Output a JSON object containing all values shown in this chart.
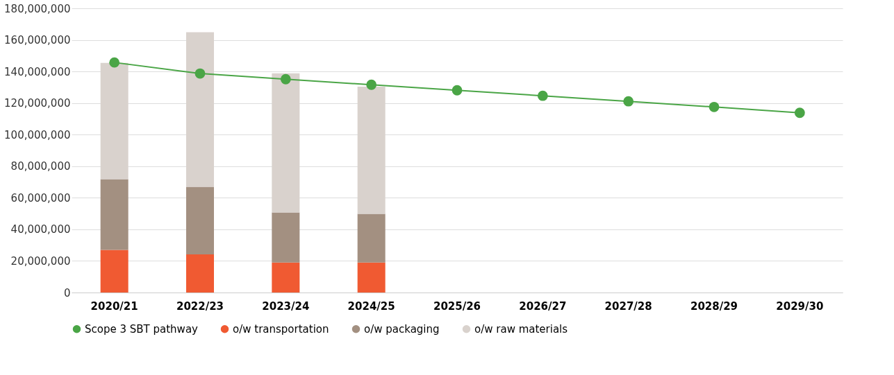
{
  "chart_data": {
    "type": "bar",
    "stacked": true,
    "categories": [
      "2020/21",
      "2022/23",
      "2023/24",
      "2024/25",
      "2025/26",
      "2026/27",
      "2027/28",
      "2028/29",
      "2029/30"
    ],
    "series": [
      {
        "name": "Scope 3 SBT pathway",
        "type": "line",
        "color": "#4aa546",
        "marker": "circle",
        "line_style": "solid",
        "values": [
          145700000,
          138700000,
          135100000,
          131600000,
          128100000,
          124600000,
          121100000,
          117500000,
          113800000
        ]
      },
      {
        "name": "o/w transportation",
        "color": "#f05a32",
        "values": [
          27000000,
          24200000,
          19000000,
          19000000,
          0,
          0,
          0,
          0,
          0
        ]
      },
      {
        "name": "o/w packaging",
        "color": "#a39081",
        "values": [
          44800000,
          42800000,
          31700000,
          30800000,
          null,
          null,
          null,
          null,
          null
        ]
      },
      {
        "name": "o/w raw materials",
        "color": "#d9d2cd",
        "values": [
          73600000,
          97800000,
          88100000,
          80600000,
          null,
          null,
          null,
          null,
          null
        ]
      }
    ],
    "ylim": [
      0,
      180000000
    ],
    "yticks": [
      0,
      {
        "value": 20000000,
        "label": "20,000,000"
      },
      {
        "value": 40000000,
        "label": "40,000,000"
      },
      {
        "value": 60000000,
        "label": "60,000,000"
      },
      {
        "value": 80000000,
        "label": "80,000,000"
      },
      {
        "value": 100000000,
        "label": "100,000,000"
      },
      {
        "value": 120000000,
        "label": "120,000,000"
      },
      {
        "value": 140000000,
        "label": "140,000,000"
      },
      {
        "value": 160000000,
        "label": "160,000,000"
      },
      {
        "value": 180000000,
        "label": "180,000,000"
      }
    ],
    "grid": "y",
    "legend": "bottom"
  }
}
